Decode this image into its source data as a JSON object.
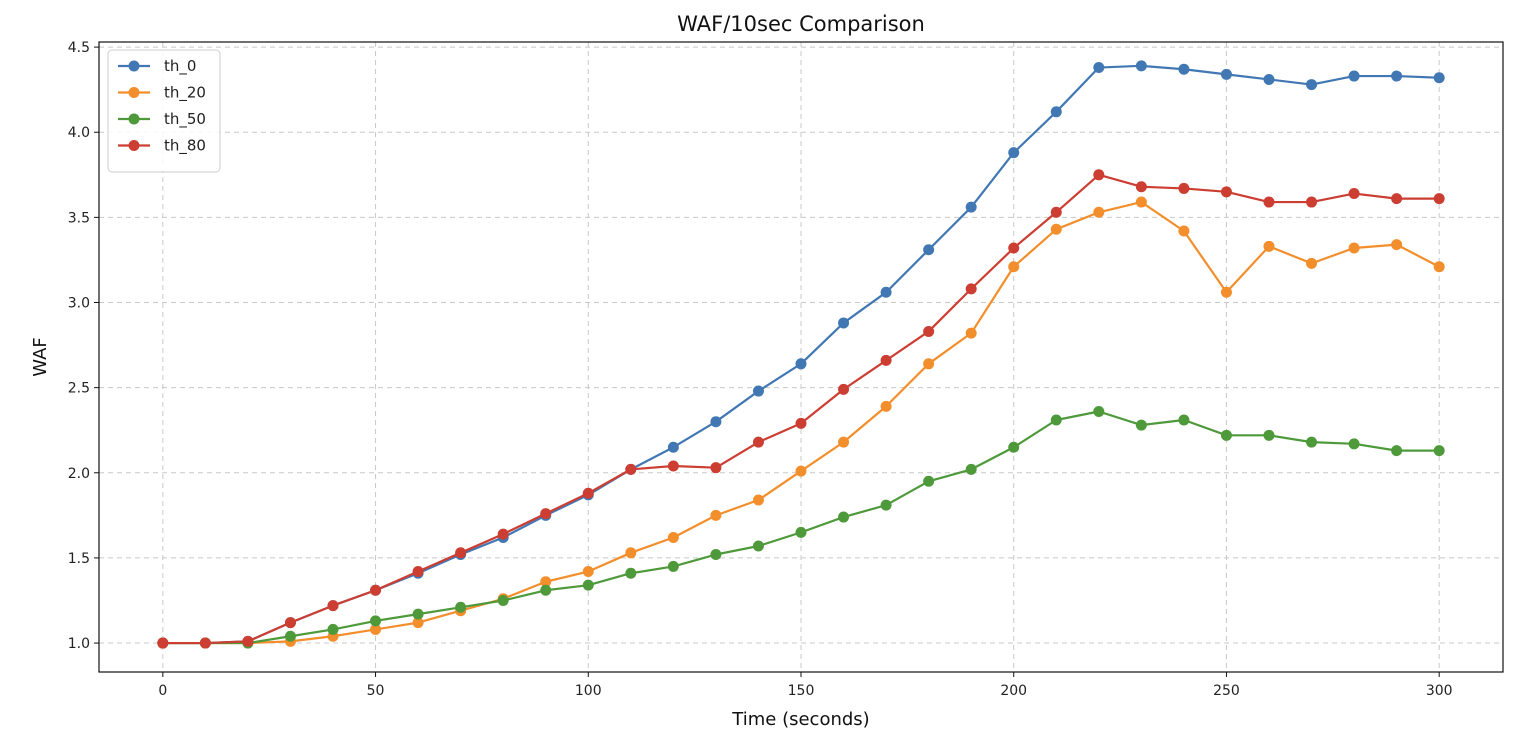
{
  "chart_data": {
    "type": "line",
    "title": "WAF/10sec Comparison",
    "xlabel": "Time (seconds)",
    "ylabel": "WAF",
    "xlim": [
      -15,
      315
    ],
    "ylim": [
      0.83,
      4.53
    ],
    "xticks": [
      0,
      50,
      100,
      150,
      200,
      250,
      300
    ],
    "yticks": [
      1.0,
      1.5,
      2.0,
      2.5,
      3.0,
      3.5,
      4.0,
      4.5
    ],
    "grid": true,
    "legend_position": "top-left",
    "x": [
      0,
      10,
      20,
      30,
      40,
      50,
      60,
      70,
      80,
      90,
      100,
      110,
      120,
      130,
      140,
      150,
      160,
      170,
      180,
      190,
      200,
      210,
      220,
      230,
      240,
      250,
      260,
      270,
      280,
      290,
      300
    ],
    "series": [
      {
        "name": "th_0",
        "color": "#4178b4",
        "values": [
          1.0,
          1.0,
          1.01,
          1.12,
          1.22,
          1.31,
          1.41,
          1.52,
          1.62,
          1.75,
          1.87,
          2.02,
          2.15,
          2.3,
          2.48,
          2.64,
          2.88,
          3.06,
          3.31,
          3.56,
          3.88,
          4.12,
          4.38,
          4.39,
          4.37,
          4.34,
          4.31,
          4.28,
          4.33,
          4.33,
          4.32
        ]
      },
      {
        "name": "th_20",
        "color": "#f28e2b",
        "values": [
          1.0,
          1.0,
          1.0,
          1.01,
          1.04,
          1.08,
          1.12,
          1.19,
          1.26,
          1.36,
          1.42,
          1.53,
          1.62,
          1.75,
          1.84,
          2.01,
          2.18,
          2.39,
          2.64,
          2.82,
          3.21,
          3.43,
          3.53,
          3.59,
          3.42,
          3.06,
          3.33,
          3.23,
          3.32,
          3.34,
          3.21
        ]
      },
      {
        "name": "th_50",
        "color": "#4e9a3b",
        "values": [
          1.0,
          1.0,
          1.0,
          1.04,
          1.08,
          1.13,
          1.17,
          1.21,
          1.25,
          1.31,
          1.34,
          1.41,
          1.45,
          1.52,
          1.57,
          1.65,
          1.74,
          1.81,
          1.95,
          2.02,
          2.15,
          2.31,
          2.36,
          2.28,
          2.31,
          2.22,
          2.22,
          2.18,
          2.17,
          2.13,
          2.13
        ]
      },
      {
        "name": "th_80",
        "color": "#cc3d32",
        "values": [
          1.0,
          1.0,
          1.01,
          1.12,
          1.22,
          1.31,
          1.42,
          1.53,
          1.64,
          1.76,
          1.88,
          2.02,
          2.04,
          2.03,
          2.18,
          2.29,
          2.49,
          2.66,
          2.83,
          3.08,
          3.32,
          3.53,
          3.75,
          3.68,
          3.67,
          3.65,
          3.59,
          3.59,
          3.64,
          3.61,
          3.61
        ]
      }
    ]
  }
}
